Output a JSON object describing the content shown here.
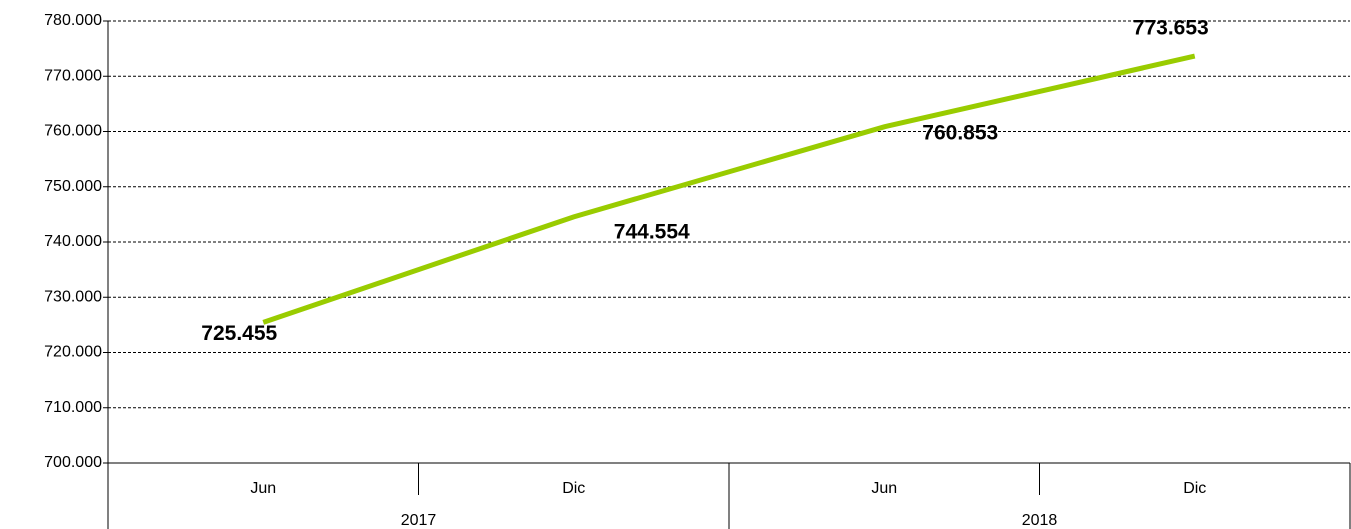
{
  "chart_data": {
    "type": "line",
    "categories": [
      "Jun",
      "Dic",
      "Jun",
      "Dic"
    ],
    "category_groups": [
      "2017",
      "2018"
    ],
    "series": [
      {
        "color": "#99cc00",
        "values": [
          725455,
          744554,
          760853,
          773653
        ],
        "value_labels": [
          "725.455",
          "744.554",
          "760.853",
          "773.653"
        ]
      }
    ],
    "ylim": [
      700000,
      780000
    ],
    "yticks": [
      {
        "value": 700000,
        "label": "700.000"
      },
      {
        "value": 710000,
        "label": "710.000"
      },
      {
        "value": 720000,
        "label": "720.000"
      },
      {
        "value": 730000,
        "label": "730.000"
      },
      {
        "value": 740000,
        "label": "740.000"
      },
      {
        "value": 750000,
        "label": "750.000"
      },
      {
        "value": 760000,
        "label": "760.000"
      },
      {
        "value": 770000,
        "label": "770.000"
      },
      {
        "value": 780000,
        "label": "780.000"
      }
    ],
    "grid": true
  }
}
